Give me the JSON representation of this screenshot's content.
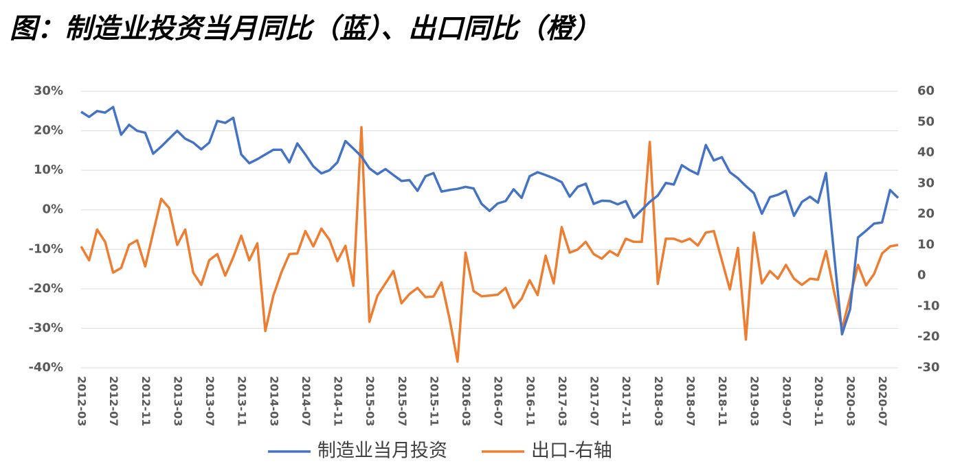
{
  "chart_data": {
    "type": "line",
    "title": "图：制造业投资当月同比（蓝）、出口同比（橙）",
    "categories": [
      "2012-03",
      null,
      null,
      null,
      "2012-07",
      null,
      null,
      null,
      "2012-11",
      null,
      null,
      null,
      "2013-03",
      null,
      null,
      null,
      "2013-07",
      null,
      null,
      null,
      "2013-11",
      null,
      null,
      null,
      "2014-03",
      null,
      null,
      null,
      "2014-07",
      null,
      null,
      null,
      "2014-11",
      null,
      null,
      null,
      "2015-03",
      null,
      null,
      null,
      "2015-07",
      null,
      null,
      null,
      "2015-11",
      null,
      null,
      null,
      "2016-03",
      null,
      null,
      null,
      "2016-07",
      null,
      null,
      null,
      "2016-11",
      null,
      null,
      null,
      "2017-03",
      null,
      null,
      null,
      "2017-07",
      null,
      null,
      null,
      "2017-11",
      null,
      null,
      null,
      "2018-03",
      null,
      null,
      null,
      "2018-07",
      null,
      null,
      null,
      "2018-11",
      null,
      null,
      null,
      "2019-03",
      null,
      null,
      null,
      "2019-07",
      null,
      null,
      null,
      "2019-11",
      null,
      null,
      null,
      "2020-03",
      null,
      null,
      null,
      "2020-07",
      null,
      null
    ],
    "series": [
      {
        "name": "制造业当月投资",
        "color": "#4472c4",
        "axis": "y",
        "values": [
          24.8,
          23.5,
          25,
          24.6,
          26,
          19,
          21.5,
          20,
          19.5,
          14.2,
          16,
          18,
          20,
          18,
          17,
          15.3,
          17,
          22.5,
          22,
          23.3,
          14,
          11.8,
          12.8,
          14,
          15.2,
          15.2,
          12,
          16.8,
          14,
          11,
          9.2,
          10,
          12,
          17.4,
          15.5,
          13.5,
          10.5,
          9,
          10.3,
          8.8,
          7.3,
          7.5,
          4.8,
          8.5,
          9.3,
          4.6,
          5,
          5.3,
          5.8,
          5.4,
          1.5,
          -0.3,
          1.6,
          2.2,
          5.2,
          3,
          8.5,
          9.5,
          8.8,
          8,
          7,
          3.3,
          5.8,
          6.6,
          1.5,
          2.3,
          2.2,
          1.4,
          2.2,
          -2,
          0,
          2,
          3.6,
          6.8,
          6.4,
          11.3,
          10,
          9,
          16.4,
          12.5,
          13.3,
          9.5,
          8,
          6,
          4.2,
          -1,
          3.2,
          3.8,
          4.8,
          -1.5,
          2,
          3.3,
          1.8,
          9.3,
          -11,
          -31.5,
          -25.2,
          -7,
          -5.3,
          -3.5,
          -3.2,
          5,
          3
        ]
      },
      {
        "name": "出口-右轴",
        "color": "#ed7d31",
        "axis": "y2",
        "values": [
          9.5,
          5,
          15,
          11,
          1,
          2.5,
          10,
          11.5,
          3,
          14,
          25,
          22,
          10,
          15,
          1,
          -3,
          5,
          7,
          0,
          6,
          13,
          5,
          10.5,
          -18,
          -6.5,
          1,
          7,
          7.2,
          14.5,
          9.5,
          15.3,
          11.7,
          4.7,
          9.7,
          -3.3,
          48.3,
          -15,
          -6.5,
          -2.5,
          1.5,
          -9,
          -6,
          -4,
          -7,
          -6.8,
          -2.2,
          -14,
          -28,
          7.5,
          -5,
          -6.7,
          -6.5,
          -6.2,
          -4,
          -10.5,
          -7.5,
          -1.5,
          -6.3,
          6.5,
          -2.5,
          15.8,
          7.5,
          8.5,
          11,
          7,
          5.5,
          8,
          6.5,
          12,
          11,
          11,
          43.5,
          -2.7,
          12,
          12,
          11,
          12,
          9.8,
          14,
          14.5,
          5,
          -4.5,
          9,
          -20.8,
          14,
          -2.5,
          1.5,
          -1,
          3.5,
          -1,
          -3,
          -1,
          -1.3,
          8,
          -5,
          -17.3,
          -7,
          3.5,
          -3.2,
          0.5,
          7.2,
          9.5,
          10
        ]
      }
    ],
    "ylim": [
      -40,
      30
    ],
    "yticks": [
      {
        "value": 30,
        "label": "30%"
      },
      {
        "value": 20,
        "label": "20%"
      },
      {
        "value": 10,
        "label": "10%"
      },
      {
        "value": 0,
        "label": "0%"
      },
      {
        "value": -10,
        "label": "-10%"
      },
      {
        "value": -20,
        "label": "-20%"
      },
      {
        "value": -30,
        "label": "-30%"
      },
      {
        "value": -40,
        "label": "-40%"
      }
    ],
    "y2lim": [
      -30,
      60
    ],
    "y2ticks": [
      60,
      50,
      40,
      30,
      20,
      10,
      0,
      -10,
      -20,
      -30
    ],
    "grid": true,
    "legend": "bottom"
  }
}
